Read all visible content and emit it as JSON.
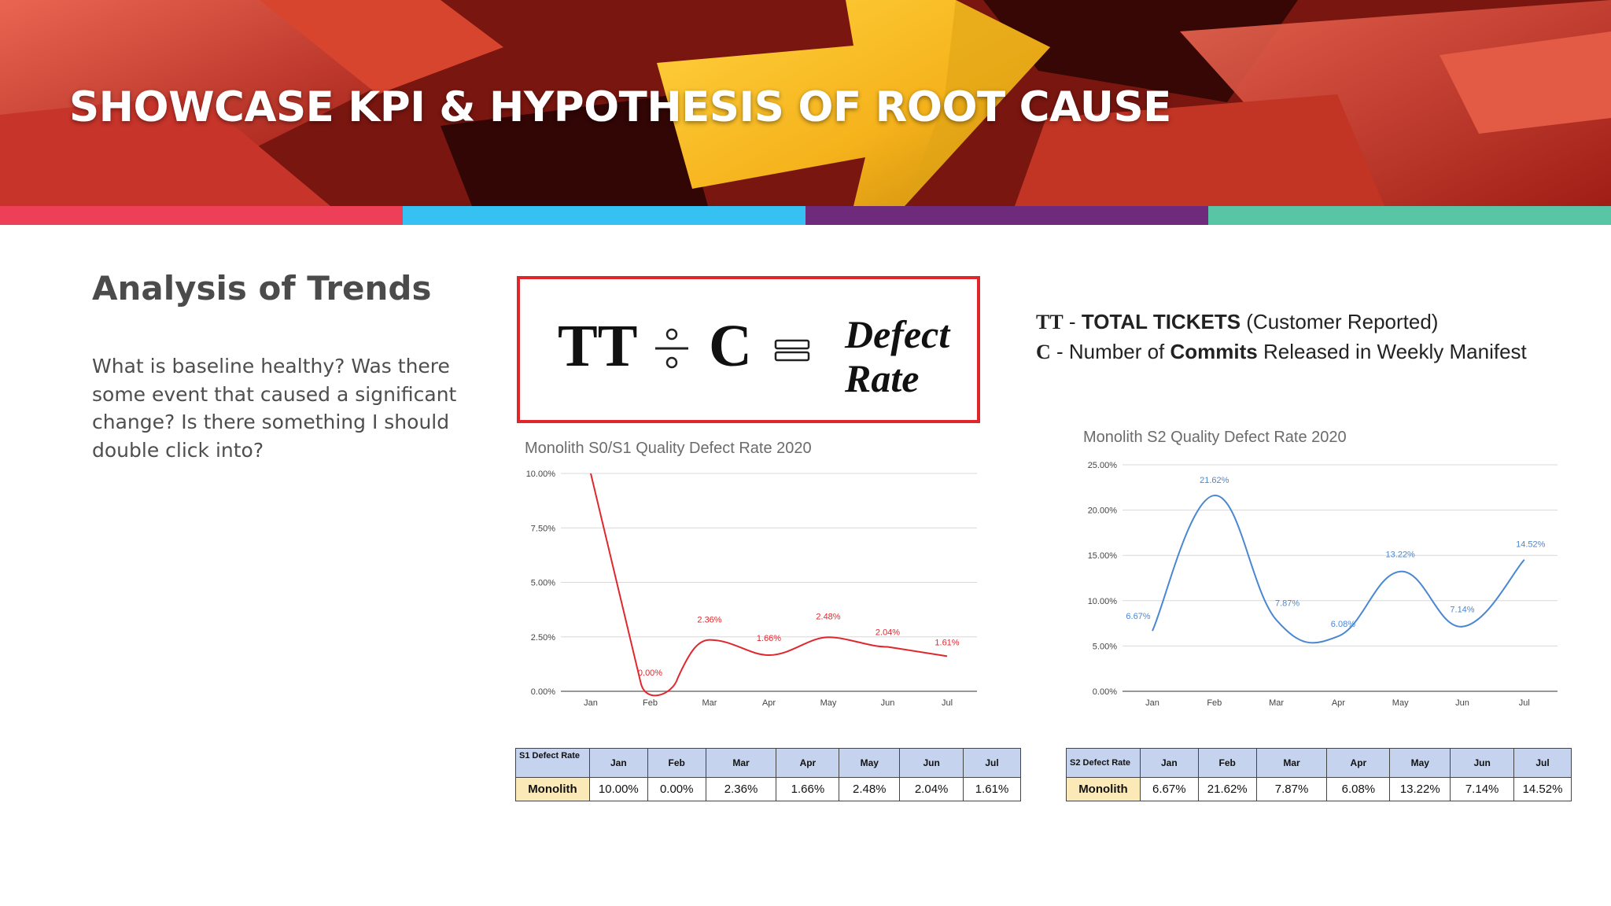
{
  "header": {
    "title": "SHOWCASE KPI & HYPOTHESIS OF ROOT CAUSE",
    "strip_colors": [
      "#ee3f58",
      "#35c1f1",
      "#6e2a7b",
      "#58c6a4"
    ]
  },
  "left": {
    "heading": "Analysis of Trends",
    "body": "What is baseline healthy? Was there some event that caused a significant change? Is there something I should double click into?"
  },
  "formula": {
    "tt": "TT",
    "c": "C",
    "result_line1": "Defect",
    "result_line2": "Rate",
    "box_color": "#e0262a"
  },
  "legend": {
    "tt_symbol": "TT",
    "tt_prefix": "- ",
    "tt_bold": "TOTAL TICKETS",
    "tt_rest": " (Customer Reported)",
    "c_symbol": "C",
    "c_prefix": " - Number of ",
    "c_bold": "Commits",
    "c_rest": " Released in Weekly Manifest"
  },
  "chart_data": [
    {
      "type": "line",
      "title": "Monolith S0/S1 Quality Defect Rate 2020",
      "x": [
        "Jan",
        "Feb",
        "Mar",
        "Apr",
        "May",
        "Jun",
        "Jul"
      ],
      "series": [
        {
          "values": [
            10.0,
            0.0,
            2.36,
            1.66,
            2.48,
            2.04,
            1.61
          ],
          "labels": [
            "",
            "0.00%",
            "2.36%",
            "1.66%",
            "2.48%",
            "2.04%",
            "1.61%"
          ],
          "color": "#e0272e"
        }
      ],
      "yticks": [
        "0.00%",
        "2.50%",
        "5.00%",
        "7.50%",
        "10.00%"
      ],
      "ylim": [
        0,
        10
      ],
      "grid": true
    },
    {
      "type": "line",
      "title": "Monolith S2 Quality Defect Rate 2020",
      "x": [
        "Jan",
        "Feb",
        "Mar",
        "Apr",
        "May",
        "Jun",
        "Jul"
      ],
      "series": [
        {
          "values": [
            6.67,
            21.62,
            7.87,
            6.08,
            13.22,
            7.14,
            14.52
          ],
          "labels": [
            "6.67%",
            "21.62%",
            "7.87%",
            "6.08%",
            "13.22%",
            "7.14%",
            "14.52%"
          ],
          "color": "#4a87d3"
        }
      ],
      "yticks": [
        "0.00%",
        "5.00%",
        "10.00%",
        "15.00%",
        "20.00%",
        "25.00%"
      ],
      "ylim": [
        0,
        25
      ],
      "grid": true
    }
  ],
  "tables": {
    "s1": {
      "header_first": "S1 Defect Rate",
      "months": [
        "Jan",
        "Feb",
        "Mar",
        "Apr",
        "May",
        "Jun",
        "Jul"
      ],
      "row_name": "Monolith",
      "values": [
        "10.00%",
        "0.00%",
        "2.36%",
        "1.66%",
        "2.48%",
        "2.04%",
        "1.61%"
      ]
    },
    "s2": {
      "header_first": "S2 Defect Rate",
      "months": [
        "Jan",
        "Feb",
        "Mar",
        "Apr",
        "May",
        "Jun",
        "Jul"
      ],
      "row_name": "Monolith",
      "values": [
        "6.67%",
        "21.62%",
        "7.87%",
        "6.08%",
        "13.22%",
        "7.14%",
        "14.52%"
      ]
    }
  }
}
